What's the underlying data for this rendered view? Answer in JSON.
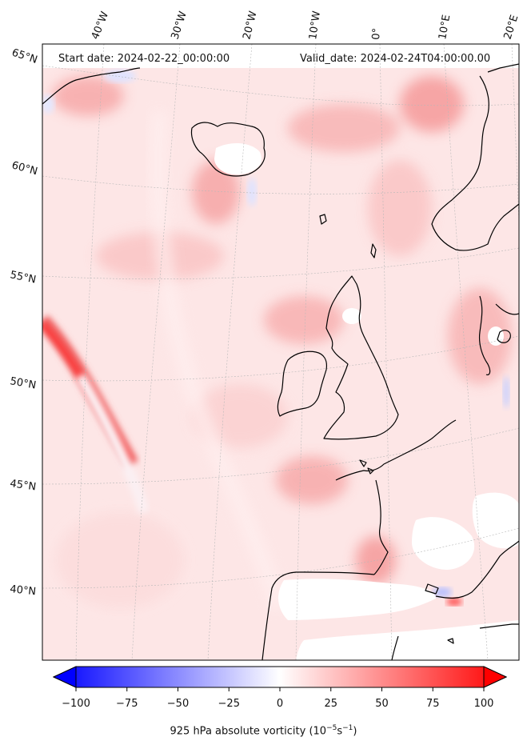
{
  "header": {
    "start_label": "Start date: 2024-02-22_00:00:00",
    "valid_label": "Valid_date: 2024-02-24T04:00:00.00"
  },
  "lon_labels": [
    "40°W",
    "30°W",
    "20°W",
    "10°W",
    "0°",
    "10°E",
    "20°E"
  ],
  "lat_labels": [
    "65°N",
    "60°N",
    "55°N",
    "50°N",
    "45°N",
    "40°N"
  ],
  "colorbar": {
    "ticks": [
      "−100",
      "−75",
      "−50",
      "−25",
      "0",
      "25",
      "50",
      "75",
      "100"
    ],
    "label": "925 hPa absolute vorticity (10",
    "label_exp1": "−5",
    "label_mid": "s",
    "label_exp2": "−1",
    "label_end": ")",
    "min": -100,
    "max": 100,
    "color_low": "#0000ff",
    "color_mid": "#ffffff",
    "color_high": "#ff0000"
  },
  "colors": {
    "background_field": "#fde3e3",
    "land_white": "#ffffff",
    "coast": "#000000"
  }
}
